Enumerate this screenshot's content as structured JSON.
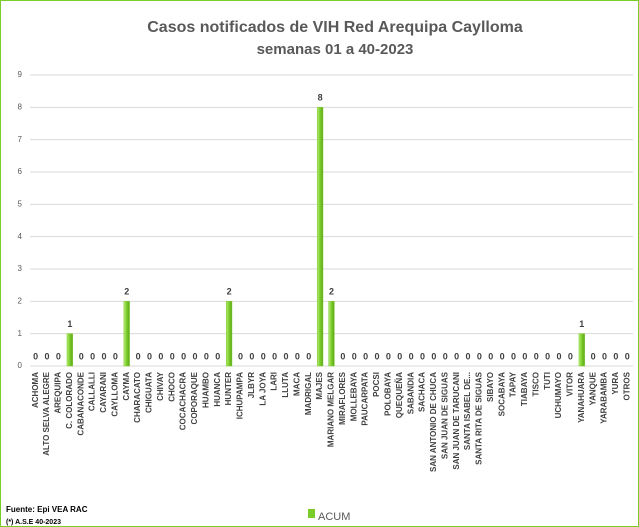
{
  "chart_data": {
    "type": "bar",
    "title": "Casos notificados de VIH Red Arequipa Caylloma",
    "subtitle": "semanas 01 a 40-2023",
    "categories": [
      "ACHOMA",
      "ALTO SELVA ALEGRE",
      "AREQUIPA",
      "C. COLORADO",
      "CABANACONDE",
      "CALLALLI",
      "CAYARANI",
      "CAYLLOMA",
      "CAYMA",
      "CHARACATO",
      "CHIGUATA",
      "CHIVAY",
      "CHOCO",
      "COCACHACRA",
      "COPORAQUE",
      "HUAMBO",
      "HUANCA",
      "HUNTER",
      "ICHUPAMPA",
      "JLBYR",
      "LA JOYA",
      "LARI",
      "LLUTA",
      "MACA",
      "MADRIGAL",
      "MAJES",
      "MARIANO MELGAR",
      "MIRAFLORES",
      "MOLLEBAYA",
      "PAUCARPATA",
      "POCSI",
      "POLOBAYA",
      "QUEQUEÑA",
      "SABANDIA",
      "SACHACA",
      "SAN ANTONIO DE CHUCA",
      "SAN JUAN DE SIGUAS",
      "SAN JUAN DE TARUCANI",
      "SANTA ISABEL DE...",
      "SANTA RITA DE SIGUAS",
      "SIBAYO",
      "SOCABAYA",
      "TAPAY",
      "TIABAYA",
      "TISCO",
      "TUTI",
      "UCHUMAYO",
      "VITOR",
      "YANAHUARA",
      "YANQUE",
      "YARABAMBA",
      "YURA",
      "OTROS"
    ],
    "series": [
      {
        "name": "ACUM",
        "color": "#7acc29",
        "values": [
          0,
          0,
          0,
          1,
          0,
          0,
          0,
          0,
          2,
          0,
          0,
          0,
          0,
          0,
          0,
          0,
          0,
          2,
          0,
          0,
          0,
          0,
          0,
          0,
          0,
          8,
          2,
          0,
          0,
          0,
          0,
          0,
          0,
          0,
          0,
          0,
          0,
          0,
          0,
          0,
          0,
          0,
          0,
          0,
          0,
          0,
          0,
          0,
          1,
          0,
          0,
          0,
          0
        ]
      }
    ],
    "ylim": [
      0,
      9
    ],
    "yticks": [
      0,
      1,
      2,
      3,
      4,
      5,
      6,
      7,
      8,
      9
    ],
    "grid": true,
    "source": "Fuente: Epi VEA RAC",
    "note": "(*) A.S.E 40-2023"
  }
}
